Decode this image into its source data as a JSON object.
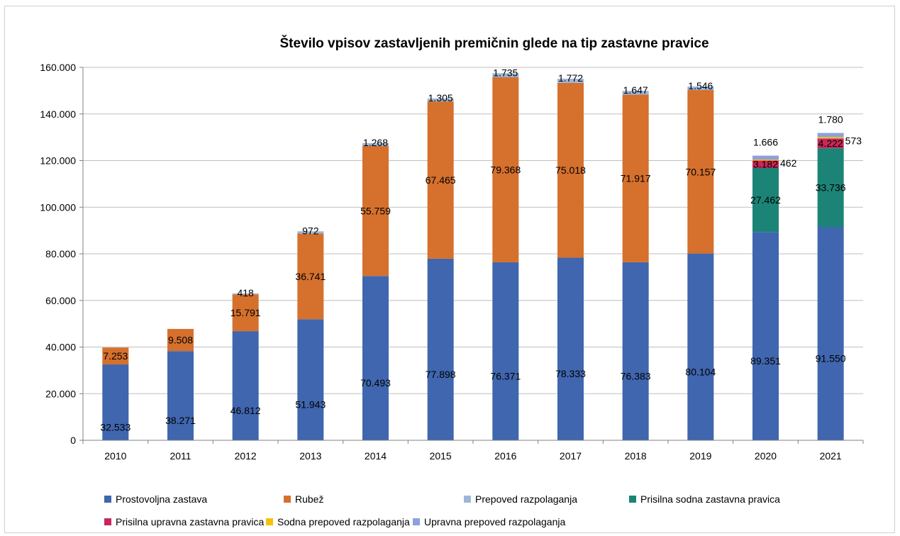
{
  "chart_data": {
    "type": "bar",
    "stacked": true,
    "title": "Število vpisov zastavljenih premičnin glede na tip zastavne pravice",
    "xlabel": "",
    "ylabel": "",
    "ylim": [
      0,
      160000
    ],
    "grid": true,
    "legend_position": "bottom",
    "categories": [
      "2010",
      "2011",
      "2012",
      "2013",
      "2014",
      "2015",
      "2016",
      "2017",
      "2018",
      "2019",
      "2020",
      "2021"
    ],
    "y_ticks": [
      "0",
      "20.000",
      "40.000",
      "60.000",
      "80.000",
      "100.000",
      "120.000",
      "140.000",
      "160.000"
    ],
    "series": [
      {
        "name": "Prostovoljna zastava",
        "color": "#3F66AE",
        "values": [
          32533,
          38271,
          46812,
          51943,
          70493,
          77898,
          76371,
          78333,
          76383,
          80104,
          89351,
          91550
        ],
        "labels": [
          "32.533",
          "38.271",
          "46.812",
          "51.943",
          "70.493",
          "77.898",
          "76.371",
          "78.333",
          "76.383",
          "80.104",
          "89.351",
          "91.550"
        ]
      },
      {
        "name": "Rubež",
        "color": "#D5702D",
        "values": [
          7253,
          9508,
          15791,
          36741,
          55759,
          67465,
          79368,
          75018,
          71917,
          70157,
          0,
          0
        ],
        "labels": [
          "7.253",
          "9.508",
          "15.791",
          "36.741",
          "55.759",
          "67.465",
          "79.368",
          "75.018",
          "71.917",
          "70.157",
          "",
          ""
        ]
      },
      {
        "name": "Prisilna sodna zastavna pravica",
        "color": "#1B8476",
        "values": [
          0,
          0,
          0,
          0,
          0,
          0,
          0,
          0,
          0,
          0,
          27462,
          33736
        ],
        "labels": [
          "",
          "",
          "",
          "",
          "",
          "",
          "",
          "",
          "",
          "",
          "27.462",
          "33.736"
        ]
      },
      {
        "name": "Prisilna upravna zastavna pravica",
        "color": "#C8285B",
        "values": [
          0,
          0,
          0,
          0,
          0,
          0,
          0,
          0,
          0,
          0,
          3182,
          4222
        ],
        "labels": [
          "",
          "",
          "",
          "",
          "",
          "",
          "",
          "",
          "",
          "",
          "3.182",
          "4.222"
        ]
      },
      {
        "name": "Sodna prepoved razpolaganja",
        "color": "#F4C20D",
        "values": [
          0,
          0,
          0,
          0,
          0,
          0,
          0,
          0,
          0,
          0,
          462,
          573
        ],
        "labels": [
          "",
          "",
          "",
          "",
          "",
          "",
          "",
          "",
          "",
          "",
          "462",
          "573"
        ]
      },
      {
        "name": "Prepoved razpolaganja",
        "color": "#9DB6DA",
        "values": [
          0,
          0,
          418,
          972,
          1268,
          1305,
          1735,
          1772,
          1647,
          1546,
          0,
          0
        ],
        "labels": [
          "",
          "",
          "418",
          "972",
          "1.268",
          "1.305",
          "1.735",
          "1.772",
          "1.647",
          "1.546",
          "",
          ""
        ]
      },
      {
        "name": "Upravna prepoved razpolaganja",
        "color": "#8EA0DC",
        "values": [
          0,
          0,
          0,
          0,
          0,
          0,
          0,
          0,
          0,
          0,
          1666,
          1780
        ],
        "labels": [
          "",
          "",
          "",
          "",
          "",
          "",
          "",
          "",
          "",
          "",
          "1.666",
          "1.780"
        ]
      }
    ],
    "legend": [
      {
        "name": "Prostovoljna zastava",
        "color": "#3F66AE"
      },
      {
        "name": "Rubež",
        "color": "#D5702D"
      },
      {
        "name": "Prepoved razpolaganja",
        "color": "#9DB6DA"
      },
      {
        "name": "Prisilna sodna zastavna pravica",
        "color": "#1B8476"
      },
      {
        "name": "Prisilna upravna zastavna pravica",
        "color": "#C8285B"
      },
      {
        "name": "Sodna prepoved razpolaganja",
        "color": "#F4C20D"
      },
      {
        "name": "Upravna prepoved razpolaganja",
        "color": "#8EA0DC"
      }
    ]
  }
}
